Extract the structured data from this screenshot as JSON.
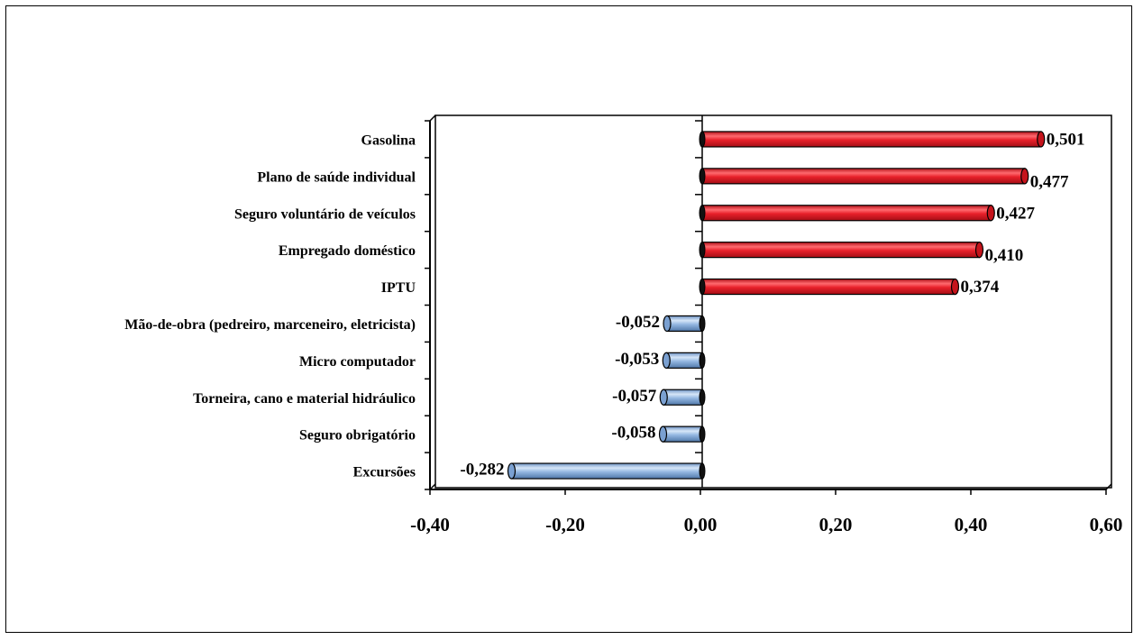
{
  "chart_data": {
    "type": "bar",
    "orientation": "horizontal",
    "title": "",
    "xlabel": "",
    "ylabel": "",
    "xlim": [
      -0.4,
      0.6
    ],
    "x_ticks": [
      -0.4,
      -0.2,
      0.0,
      0.2,
      0.4,
      0.6
    ],
    "x_tick_labels": [
      "-0,40",
      "-0,20",
      "0,00",
      "0,20",
      "0,40",
      "0,60"
    ],
    "grid": false,
    "legend": "none",
    "categories": [
      "Gasolina",
      "Plano de saúde individual",
      "Seguro voluntário de veículos",
      "Empregado doméstico",
      "IPTU",
      "Mão-de-obra (pedreiro, marceneiro, eletricista)",
      "Micro computador",
      "Torneira, cano e material hidráulico",
      "Seguro obrigatório",
      "Excursões"
    ],
    "values": [
      0.501,
      0.477,
      0.427,
      0.41,
      0.374,
      -0.052,
      -0.053,
      -0.057,
      -0.058,
      -0.282
    ],
    "value_labels": [
      "0,501",
      "0,477",
      "0,427",
      "0,410",
      "0,374",
      "-0,052",
      "-0,053",
      "-0,057",
      "-0,058",
      "-0,282"
    ],
    "colors": {
      "positive": "#e8202a",
      "positive_dark": "#a40f16",
      "negative": "#95b8e2",
      "negative_dark": "#4f77a8",
      "axis": "#000000"
    }
  }
}
